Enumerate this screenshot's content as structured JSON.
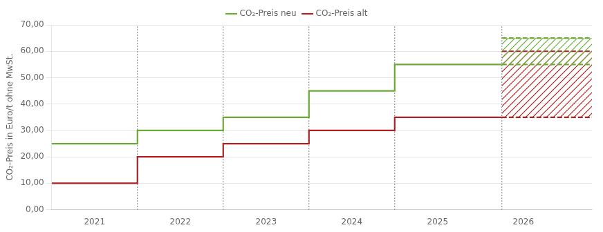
{
  "chart_data": {
    "type": "line",
    "ylabel": "CO₂-Preis in Euro/t ohne MwSt.",
    "xlim": [
      2020.5,
      2026.8
    ],
    "xticks": [
      2021,
      2022,
      2023,
      2024,
      2025,
      2026
    ],
    "ylim": [
      0,
      70
    ],
    "yticks": [
      {
        "value": 0,
        "label": "0,00"
      },
      {
        "value": 10,
        "label": "10,00"
      },
      {
        "value": 20,
        "label": "20,00"
      },
      {
        "value": 30,
        "label": "30,00"
      },
      {
        "value": 40,
        "label": "40,00"
      },
      {
        "value": 50,
        "label": "50,00"
      },
      {
        "value": 60,
        "label": "60,00"
      },
      {
        "value": 70,
        "label": "70,00"
      }
    ],
    "grid": "y",
    "legend": "top",
    "vlines": [
      2021.5,
      2022.5,
      2023.5,
      2024.5,
      2025.75
    ],
    "series": [
      {
        "name": "CO₂-Preis neu",
        "color": "#6aaa35",
        "line_style": "solid",
        "x": [
          2020.5,
          2021.5,
          2021.5,
          2022.5,
          2022.5,
          2023.5,
          2023.5,
          2024.5,
          2024.5,
          2025.75
        ],
        "values": [
          25,
          25,
          30,
          30,
          35,
          35,
          45,
          45,
          55,
          55
        ],
        "corridor": {
          "x": [
            2025.75,
            2026.8
          ],
          "upper": 65,
          "lower": 55,
          "line_style": "dashed"
        }
      },
      {
        "name": "CO₂-Preis alt",
        "color": "#aa2222",
        "line_style": "solid",
        "x": [
          2020.5,
          2021.5,
          2021.5,
          2022.5,
          2022.5,
          2023.5,
          2023.5,
          2024.5,
          2024.5,
          2025.75
        ],
        "values": [
          10,
          10,
          20,
          20,
          25,
          25,
          30,
          30,
          35,
          35
        ],
        "corridor": {
          "x": [
            2025.75,
            2026.8
          ],
          "upper": 60,
          "lower": 35,
          "line_style": "dashed"
        }
      }
    ]
  }
}
